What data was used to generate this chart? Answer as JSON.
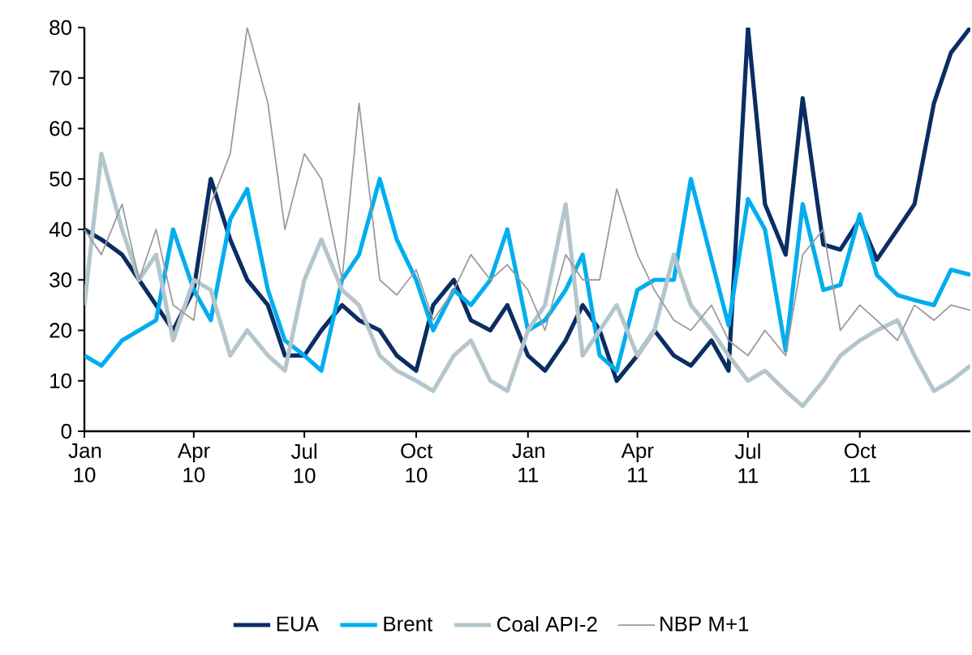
{
  "chart_data": {
    "type": "line",
    "x": [
      "2010-01-01",
      "2010-01-15",
      "2010-02-01",
      "2010-02-15",
      "2010-03-01",
      "2010-03-15",
      "2010-04-01",
      "2010-04-15",
      "2010-05-01",
      "2010-05-15",
      "2010-06-01",
      "2010-06-15",
      "2010-07-01",
      "2010-07-15",
      "2010-08-01",
      "2010-08-15",
      "2010-09-01",
      "2010-09-15",
      "2010-10-01",
      "2010-10-15",
      "2010-11-01",
      "2010-11-15",
      "2010-12-01",
      "2010-12-15",
      "2011-01-01",
      "2011-01-15",
      "2011-02-01",
      "2011-02-15",
      "2011-03-01",
      "2011-03-15",
      "2011-04-01",
      "2011-04-15",
      "2011-05-01",
      "2011-05-15",
      "2011-06-01",
      "2011-06-15",
      "2011-07-01",
      "2011-07-15",
      "2011-08-01",
      "2011-08-15",
      "2011-09-01",
      "2011-09-15",
      "2011-10-01",
      "2011-10-15",
      "2011-11-01",
      "2011-11-15",
      "2011-12-01",
      "2011-12-15",
      "2011-12-31"
    ],
    "series": [
      {
        "name": "EUA",
        "color": "#0b2d64",
        "values": [
          40,
          38,
          35,
          30,
          25,
          20,
          28,
          50,
          38,
          30,
          25,
          15,
          15,
          20,
          25,
          22,
          20,
          15,
          12,
          25,
          30,
          22,
          20,
          25,
          15,
          12,
          18,
          25,
          20,
          10,
          15,
          20,
          15,
          13,
          18,
          12,
          80,
          45,
          35,
          66,
          37,
          36,
          42,
          34,
          40,
          45,
          65,
          75,
          80
        ]
      },
      {
        "name": "Brent",
        "color": "#00aeef",
        "values": [
          15,
          13,
          18,
          20,
          22,
          40,
          28,
          22,
          42,
          48,
          28,
          18,
          15,
          12,
          30,
          35,
          50,
          38,
          30,
          20,
          28,
          25,
          30,
          40,
          20,
          22,
          28,
          35,
          15,
          12,
          28,
          30,
          30,
          50,
          34,
          21,
          46,
          40,
          16,
          45,
          28,
          29,
          43,
          31,
          27,
          26,
          25,
          32,
          31
        ]
      },
      {
        "name": "Coal API-2",
        "color": "#b4c6cc",
        "values": [
          25,
          55,
          40,
          30,
          35,
          18,
          30,
          28,
          15,
          20,
          15,
          12,
          30,
          38,
          28,
          25,
          15,
          12,
          10,
          8,
          15,
          18,
          10,
          8,
          20,
          25,
          45,
          15,
          20,
          25,
          15,
          20,
          35,
          25,
          20,
          15,
          10,
          12,
          8,
          5,
          10,
          15,
          18,
          20,
          22,
          15,
          8,
          10,
          13
        ]
      },
      {
        "name": "NBP M+1",
        "color": "#9b9b9b",
        "values": [
          40,
          35,
          45,
          30,
          40,
          25,
          22,
          45,
          55,
          80,
          65,
          40,
          55,
          50,
          30,
          65,
          30,
          27,
          32,
          22,
          28,
          35,
          30,
          33,
          28,
          20,
          35,
          30,
          30,
          48,
          35,
          28,
          22,
          20,
          25,
          18,
          15,
          20,
          15,
          35,
          40,
          20,
          25,
          22,
          18,
          25,
          22,
          25,
          24
        ]
      }
    ],
    "xlim": [
      "2010-01-01",
      "2011-12-31"
    ],
    "xticks": [
      {
        "value": "2010-01-01",
        "label": "Jan 10"
      },
      {
        "value": "2010-04-01",
        "label": "Apr 10"
      },
      {
        "value": "2010-07-01",
        "label": "Jul 10"
      },
      {
        "value": "2010-10-01",
        "label": "Oct 10"
      },
      {
        "value": "2011-01-01",
        "label": "Jan 11"
      },
      {
        "value": "2011-04-01",
        "label": "Apr 11"
      },
      {
        "value": "2011-07-01",
        "label": "Jul 11"
      },
      {
        "value": "2011-10-01",
        "label": "Oct 11"
      }
    ],
    "ylim": [
      0,
      80
    ],
    "yticks": [
      0,
      10,
      20,
      30,
      40,
      50,
      60,
      70,
      80
    ],
    "legend": "bottom",
    "line_style": "solid"
  }
}
